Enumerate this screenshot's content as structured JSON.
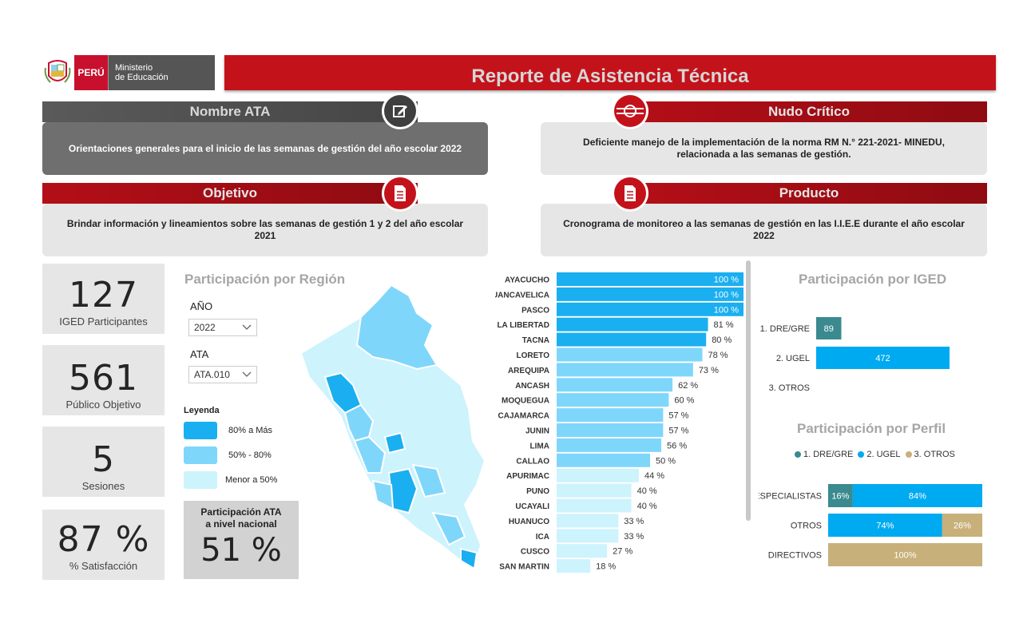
{
  "header": {
    "peru_label": "PERÚ",
    "ministry_line1": "Ministerio",
    "ministry_line2": "de Educación",
    "title": "Reporte de Asistencia Técnica"
  },
  "panels": {
    "nombre_ata": {
      "title": "Nombre ATA",
      "text": "Orientaciones generales para el inicio de las semanas de gestión del año escolar 2022",
      "icon": "edit-icon"
    },
    "nudo_critico": {
      "title": "Nudo Crítico",
      "text": "Deficiente manejo de la implementación de la norma RM N.° 221-2021- MINEDU, relacionada a las semanas de gestión.",
      "icon": "knot-icon"
    },
    "objetivo": {
      "title": "Objetivo",
      "text": "Brindar información  y lineamientos sobre las semanas de gestión 1 y 2 del año escolar 2021",
      "icon": "document-icon"
    },
    "producto": {
      "title": "Producto",
      "text": "Cronograma de monitoreo a las semanas de gestión en las I.I.E.E durante el año escolar 2022",
      "icon": "document-icon"
    }
  },
  "kpis": [
    {
      "value": "127",
      "label": "IGED Participantes"
    },
    {
      "value": "561",
      "label": "Público Objetivo"
    },
    {
      "value": "5",
      "label": "Sesiones"
    },
    {
      "value": "87 %",
      "label": "% Satisfacción"
    }
  ],
  "region_section": {
    "title": "Participación por Región",
    "year_label": "AÑO",
    "year_value": "2022",
    "ata_label": "ATA",
    "ata_value": "ATA.010",
    "legend_title": "Leyenda",
    "legend": [
      {
        "label": "80% a Más",
        "color": "#1aaff0"
      },
      {
        "label": "50% - 80%",
        "color": "#7fd6fb"
      },
      {
        "label": "Menor a 50%",
        "color": "#cdf3fd"
      }
    ],
    "national_label_1": "Participación ATA",
    "national_label_2": "a nivel nacional",
    "national_value": "51 %"
  },
  "colors": {
    "brand_red": "#c4121b",
    "high": "#1aaff0",
    "mid": "#7fd6fb",
    "low": "#cdf3fd",
    "dre": "#3a8a8f",
    "ugel": "#00aaf0",
    "otros": "#c8b07a"
  },
  "chart_data": [
    {
      "type": "bar",
      "orientation": "horizontal",
      "categories": [
        "AYACUCHO",
        "HUANCAVELICA",
        "PASCO",
        "LA LIBERTAD",
        "TACNA",
        "LORETO",
        "AREQUIPA",
        "ANCASH",
        "MOQUEGUA",
        "CAJAMARCA",
        "JUNIN",
        "LIMA",
        "CALLAO",
        "APURIMAC",
        "PUNO",
        "UCAYALI",
        "HUANUCO",
        "ICA",
        "CUSCO",
        "SAN MARTIN"
      ],
      "values": [
        100,
        100,
        100,
        81,
        80,
        78,
        73,
        62,
        60,
        57,
        57,
        56,
        50,
        44,
        40,
        40,
        33,
        33,
        27,
        18
      ],
      "labels": [
        "100 %",
        "100 %",
        "100 %",
        "81 %",
        "80 %",
        "78 %",
        "73 %",
        "62 %",
        "60 %",
        "57 %",
        "57 %",
        "56 %",
        "50 %",
        "44 %",
        "40 %",
        "40 %",
        "33 %",
        "33 %",
        "27 %",
        "18 %"
      ],
      "xlim": [
        0,
        100
      ]
    },
    {
      "type": "bar",
      "orientation": "horizontal",
      "title": "Participación por IGED",
      "categories": [
        "1. DRE/GRE",
        "2. UGEL",
        "3. OTROS"
      ],
      "values": [
        89,
        472,
        0
      ],
      "labels": [
        "89",
        "472",
        ""
      ]
    },
    {
      "type": "bar",
      "orientation": "horizontal",
      "stacked": true,
      "title": "Participación por Perfil",
      "categories": [
        "ESPECIALISTAS",
        "OTROS",
        "DIRECTIVOS"
      ],
      "legend_position": "top",
      "series": [
        {
          "name": "1. DRE/GRE",
          "values": [
            16,
            0,
            0
          ]
        },
        {
          "name": "2. UGEL",
          "values": [
            84,
            74,
            0
          ]
        },
        {
          "name": "3. OTROS",
          "values": [
            0,
            26,
            100
          ]
        }
      ],
      "xlim": [
        0,
        100
      ]
    }
  ]
}
